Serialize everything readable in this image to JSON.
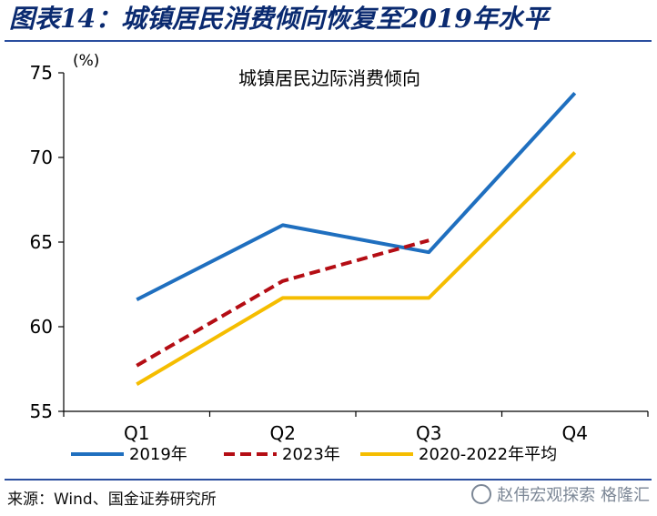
{
  "header": {
    "title": "图表14：城镇居民消费倾向恢复至2019年水平"
  },
  "footer": {
    "source": "来源：Wind、国金证券研究所",
    "watermark": "赵伟宏观探索 格隆汇"
  },
  "chart_data": {
    "type": "line",
    "title": "城镇居民边际消费倾向",
    "ylabel": "(%)",
    "xlabel": "",
    "categories": [
      "Q1",
      "Q2",
      "Q3",
      "Q4"
    ],
    "ylim": [
      55,
      75
    ],
    "yticks": [
      55,
      60,
      65,
      70,
      75
    ],
    "grid": false,
    "legend": "bottom",
    "series": [
      {
        "name": "2019年",
        "color": "#1f6fbf",
        "dash": "solid",
        "values": [
          61.6,
          66.0,
          64.4,
          73.8
        ]
      },
      {
        "name": "2023年",
        "color": "#b40d14",
        "dash": "dashed",
        "values": [
          57.7,
          62.7,
          65.1,
          null
        ]
      },
      {
        "name": "2020-2022年平均",
        "color": "#f5bd00",
        "dash": "solid",
        "values": [
          56.6,
          61.7,
          61.7,
          70.3
        ]
      }
    ]
  }
}
